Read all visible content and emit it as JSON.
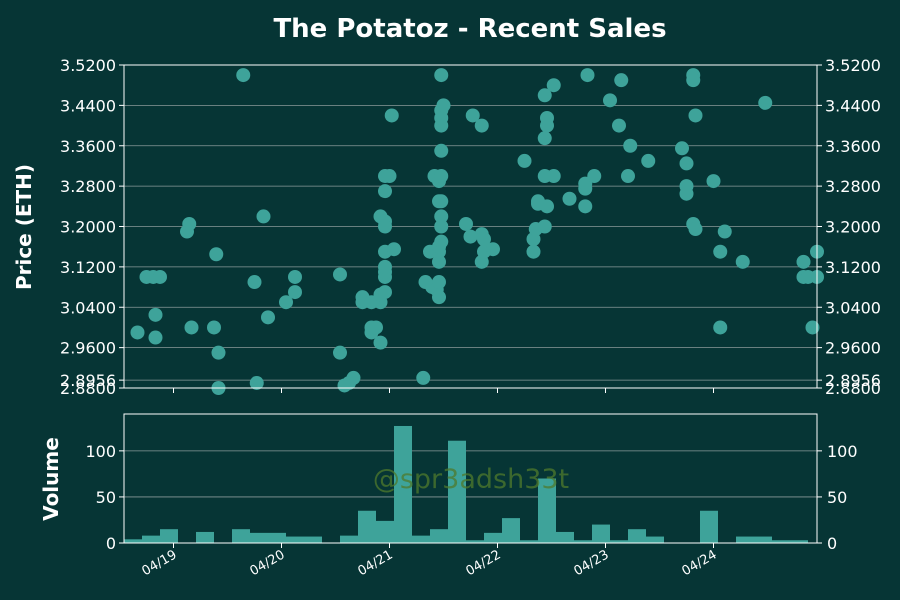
{
  "chart_data": [
    {
      "type": "scatter",
      "title": "The Potatoz - Recent Sales",
      "ylabel": "Price (ETH)",
      "xlabel": "",
      "ylim": [
        2.88,
        3.52
      ],
      "yticks": [
        "2.8800",
        "2.8956",
        "2.9600",
        "3.0400",
        "3.1200",
        "3.2000",
        "3.2800",
        "3.3600",
        "3.4400",
        "3.5200"
      ],
      "ytick_values": [
        2.88,
        2.8956,
        2.96,
        3.04,
        3.12,
        3.2,
        3.28,
        3.36,
        3.44,
        3.52
      ],
      "xlim": [
        "04/18 13:00",
        "04/24 23:00"
      ],
      "xticks": [
        "04/19",
        "04/20",
        "04/21",
        "04/22",
        "04/23",
        "04/24"
      ],
      "grid": "horizontal",
      "marker_color": "#3ea39a",
      "points": [
        [
          "04/18 16:00",
          2.99
        ],
        [
          "04/18 18:00",
          3.1
        ],
        [
          "04/18 19:30",
          3.1
        ],
        [
          "04/18 20:00",
          3.025
        ],
        [
          "04/18 20:00",
          2.98
        ],
        [
          "04/18 21:00",
          3.1
        ],
        [
          "04/19 03:00",
          3.19
        ],
        [
          "04/19 03:30",
          3.205
        ],
        [
          "04/19 04:00",
          3.0
        ],
        [
          "04/19 09:00",
          3.0
        ],
        [
          "04/19 09:30",
          3.145
        ],
        [
          "04/19 10:00",
          2.95
        ],
        [
          "04/19 10:00",
          2.88
        ],
        [
          "04/19 15:30",
          3.5
        ],
        [
          "04/19 18:00",
          3.09
        ],
        [
          "04/19 18:30",
          2.89
        ],
        [
          "04/19 20:00",
          3.22
        ],
        [
          "04/19 21:00",
          3.02
        ],
        [
          "04/20 01:00",
          3.05
        ],
        [
          "04/20 03:00",
          3.07
        ],
        [
          "04/20 03:00",
          3.1
        ],
        [
          "04/20 13:00",
          3.105
        ],
        [
          "04/20 13:00",
          2.95
        ],
        [
          "04/20 14:00",
          2.885
        ],
        [
          "04/20 15:00",
          2.89
        ],
        [
          "04/20 16:00",
          2.9
        ],
        [
          "04/20 18:00",
          3.06
        ],
        [
          "04/20 18:00",
          3.05
        ],
        [
          "04/20 20:00",
          2.99
        ],
        [
          "04/20 20:00",
          3.0
        ],
        [
          "04/20 20:00",
          3.05
        ],
        [
          "04/20 21:00",
          3.0
        ],
        [
          "04/20 22:00",
          2.97
        ],
        [
          "04/20 22:00",
          3.05
        ],
        [
          "04/20 22:00",
          3.065
        ],
        [
          "04/20 23:00",
          3.07
        ],
        [
          "04/20 23:00",
          3.1
        ],
        [
          "04/20 23:00",
          3.11
        ],
        [
          "04/20 23:00",
          3.12
        ],
        [
          "04/20 23:00",
          3.15
        ],
        [
          "04/20 22:00",
          3.22
        ],
        [
          "04/20 23:00",
          3.21
        ],
        [
          "04/20 23:00",
          3.2
        ],
        [
          "04/20 23:00",
          3.27
        ],
        [
          "04/20 23:00",
          3.3
        ],
        [
          "04/21 00:00",
          3.3
        ],
        [
          "04/21 00:30",
          3.42
        ],
        [
          "04/21 01:00",
          3.155
        ],
        [
          "04/21 07:30",
          2.9
        ],
        [
          "04/21 08:00",
          3.09
        ],
        [
          "04/21 09:00",
          3.15
        ],
        [
          "04/21 09:30",
          3.08
        ],
        [
          "04/21 10:00",
          3.3
        ],
        [
          "04/21 10:30",
          3.075
        ],
        [
          "04/21 11:00",
          3.06
        ],
        [
          "04/21 11:00",
          3.09
        ],
        [
          "04/21 11:00",
          3.13
        ],
        [
          "04/21 11:00",
          3.15
        ],
        [
          "04/21 11:00",
          3.16
        ],
        [
          "04/21 11:30",
          3.17
        ],
        [
          "04/21 11:00",
          3.25
        ],
        [
          "04/21 11:30",
          3.25
        ],
        [
          "04/21 11:30",
          3.2
        ],
        [
          "04/21 11:30",
          3.22
        ],
        [
          "04/21 11:00",
          3.29
        ],
        [
          "04/21 11:30",
          3.3
        ],
        [
          "04/21 11:30",
          3.35
        ],
        [
          "04/21 11:30",
          3.4
        ],
        [
          "04/21 11:30",
          3.415
        ],
        [
          "04/21 11:30",
          3.43
        ],
        [
          "04/21 12:00",
          3.44
        ],
        [
          "04/21 11:30",
          3.5
        ],
        [
          "04/21 17:00",
          3.205
        ],
        [
          "04/21 18:00",
          3.18
        ],
        [
          "04/21 18:30",
          3.42
        ],
        [
          "04/21 20:30",
          3.4
        ],
        [
          "04/21 20:30",
          3.185
        ],
        [
          "04/21 21:00",
          3.175
        ],
        [
          "04/21 20:30",
          3.13
        ],
        [
          "04/21 21:30",
          3.155
        ],
        [
          "04/21 21:00",
          3.15
        ],
        [
          "04/21 23:00",
          3.155
        ],
        [
          "04/22 06:00",
          3.33
        ],
        [
          "04/22 08:00",
          3.15
        ],
        [
          "04/22 08:00",
          3.175
        ],
        [
          "04/22 08:30",
          3.195
        ],
        [
          "04/22 09:00",
          3.25
        ],
        [
          "04/22 09:00",
          3.245
        ],
        [
          "04/22 11:00",
          3.24
        ],
        [
          "04/22 10:30",
          3.2
        ],
        [
          "04/22 10:30",
          3.3
        ],
        [
          "04/22 10:30",
          3.375
        ],
        [
          "04/22 11:00",
          3.4
        ],
        [
          "04/22 11:00",
          3.415
        ],
        [
          "04/22 10:30",
          3.46
        ],
        [
          "04/22 12:30",
          3.48
        ],
        [
          "04/22 12:30",
          3.3
        ],
        [
          "04/22 16:00",
          3.255
        ],
        [
          "04/22 19:30",
          3.275
        ],
        [
          "04/22 19:30",
          3.285
        ],
        [
          "04/22 19:30",
          3.24
        ],
        [
          "04/22 20:00",
          3.5
        ],
        [
          "04/22 21:30",
          3.3
        ],
        [
          "04/23 01:00",
          3.45
        ],
        [
          "04/23 03:00",
          3.4
        ],
        [
          "04/23 03:30",
          3.49
        ],
        [
          "04/23 05:00",
          3.3
        ],
        [
          "04/23 05:30",
          3.36
        ],
        [
          "04/23 09:30",
          3.33
        ],
        [
          "04/23 17:00",
          3.355
        ],
        [
          "04/23 18:00",
          3.325
        ],
        [
          "04/23 18:00",
          3.28
        ],
        [
          "04/23 18:00",
          3.265
        ],
        [
          "04/23 19:30",
          3.5
        ],
        [
          "04/23 19:30",
          3.49
        ],
        [
          "04/23 20:00",
          3.42
        ],
        [
          "04/23 19:30",
          3.205
        ],
        [
          "04/23 20:00",
          3.195
        ],
        [
          "04/24 00:00",
          3.29
        ],
        [
          "04/24 01:30",
          3.15
        ],
        [
          "04/24 01:30",
          3.0
        ],
        [
          "04/24 02:30",
          3.19
        ],
        [
          "04/24 06:30",
          3.13
        ],
        [
          "04/24 11:30",
          3.445
        ],
        [
          "04/24 20:00",
          3.13
        ],
        [
          "04/24 20:00",
          3.1
        ],
        [
          "04/24 21:00",
          3.1
        ],
        [
          "04/24 22:00",
          3.0
        ],
        [
          "04/24 23:00",
          3.1
        ],
        [
          "04/24 23:00",
          3.15
        ]
      ]
    },
    {
      "type": "bar",
      "ylabel": "Volume",
      "xlabel": "",
      "ylim": [
        0,
        140
      ],
      "yticks": [
        "0",
        "50",
        "100"
      ],
      "ytick_values": [
        0,
        50,
        100
      ],
      "grid": "horizontal",
      "bar_color": "#3ea39a",
      "bin_hours": 4,
      "bin_start": "04/18 13:00",
      "values": [
        4,
        8,
        15,
        0,
        12,
        0,
        15,
        11,
        11,
        7,
        7,
        0,
        8,
        35,
        24,
        127,
        8,
        15,
        111,
        3,
        11,
        27,
        3,
        70,
        12,
        3,
        20,
        3,
        15,
        7,
        0,
        0,
        35,
        0,
        7,
        7,
        3,
        3,
        0,
        11,
        11
      ],
      "watermark": "@spr3adsh33t"
    }
  ]
}
